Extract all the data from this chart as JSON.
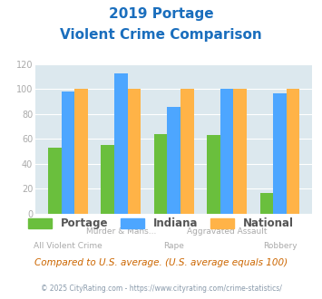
{
  "title_line1": "2019 Portage",
  "title_line2": "Violent Crime Comparison",
  "category_labels_line1": [
    "",
    "Murder & Mans...",
    "",
    "Aggravated Assault",
    ""
  ],
  "category_labels_line2": [
    "All Violent Crime",
    "",
    "Rape",
    "",
    "Robbery"
  ],
  "portage_values": [
    53,
    55,
    64,
    63,
    17
  ],
  "indiana_values": [
    98,
    113,
    86,
    100,
    97
  ],
  "national_values": [
    100,
    100,
    100,
    100,
    100
  ],
  "portage_color": "#6abf3d",
  "indiana_color": "#4da6ff",
  "national_color": "#ffb347",
  "ylim": [
    0,
    120
  ],
  "yticks": [
    0,
    20,
    40,
    60,
    80,
    100,
    120
  ],
  "bg_color": "#dce8ee",
  "title_color": "#1a6ebd",
  "subtitle_text": "Compared to U.S. average. (U.S. average equals 100)",
  "subtitle_color": "#cc6600",
  "footer_text": "© 2025 CityRating.com - https://www.cityrating.com/crime-statistics/",
  "footer_color": "#8899aa",
  "legend_labels": [
    "Portage",
    "Indiana",
    "National"
  ],
  "legend_text_color": "#555555",
  "tick_color": "#aaaaaa",
  "bar_width": 0.25
}
